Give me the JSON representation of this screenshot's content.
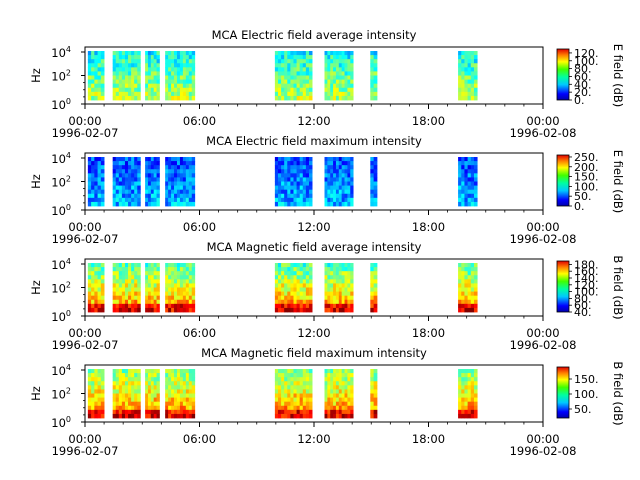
{
  "chart_data": [
    {
      "type": "heatmap",
      "title": "MCA  Electric field average intensity",
      "ylabel": "Hz",
      "yticks": [
        "10",
        "10",
        "10"
      ],
      "ytick_exps": [
        "0",
        "2",
        "4"
      ],
      "xtick_times": [
        "00:00",
        "06:00",
        "12:00",
        "18:00",
        "00:00"
      ],
      "xtick_dates": [
        "1996-02-07",
        "",
        "",
        "",
        "1996-02-08"
      ],
      "colorbar": {
        "label": "E field (dB)",
        "min": 0,
        "max": 130,
        "ticks": [
          0,
          20,
          40,
          60,
          80,
          100,
          120
        ],
        "tick_labels": [
          "0.",
          "20.",
          "40.",
          "60.",
          "80.",
          "100.",
          "120."
        ]
      },
      "intervals_hours": [
        [
          0.15,
          1.0
        ],
        [
          1.45,
          2.9
        ],
        [
          3.15,
          3.9
        ],
        [
          4.2,
          5.75
        ],
        [
          9.95,
          11.9
        ],
        [
          12.55,
          14.05
        ],
        [
          14.95,
          15.3
        ],
        [
          19.55,
          20.55
        ]
      ],
      "level_top": 0.38,
      "level_bottom": 0.55
    },
    {
      "type": "heatmap",
      "title": "MCA  Electric field maximum intensity",
      "ylabel": "Hz",
      "yticks": [
        "10",
        "10",
        "10"
      ],
      "ytick_exps": [
        "0",
        "2",
        "4"
      ],
      "xtick_times": [
        "00:00",
        "06:00",
        "12:00",
        "18:00",
        "00:00"
      ],
      "xtick_dates": [
        "1996-02-07",
        "",
        "",
        "",
        "1996-02-08"
      ],
      "colorbar": {
        "label": "E field (dB)",
        "min": 0,
        "max": 260,
        "ticks": [
          0,
          50,
          100,
          150,
          200,
          250
        ],
        "tick_labels": [
          "0.",
          "50.",
          "100.",
          "150.",
          "200.",
          "250."
        ]
      },
      "intervals_hours": [
        [
          0.15,
          1.0
        ],
        [
          1.45,
          2.9
        ],
        [
          3.15,
          3.9
        ],
        [
          4.2,
          5.75
        ],
        [
          9.95,
          11.9
        ],
        [
          12.55,
          14.05
        ],
        [
          14.95,
          15.3
        ],
        [
          19.55,
          20.55
        ]
      ],
      "level_top": 0.2,
      "level_bottom": 0.3
    },
    {
      "type": "heatmap",
      "title": "MCA  Magnetic field average intensity",
      "ylabel": "Hz",
      "yticks": [
        "10",
        "10",
        "10"
      ],
      "ytick_exps": [
        "0",
        "2",
        "4"
      ],
      "xtick_times": [
        "00:00",
        "06:00",
        "12:00",
        "18:00",
        "00:00"
      ],
      "xtick_dates": [
        "1996-02-07",
        "",
        "",
        "",
        "1996-02-08"
      ],
      "colorbar": {
        "label": "B field (dB)",
        "min": 40,
        "max": 190,
        "ticks": [
          40,
          60,
          80,
          100,
          120,
          140,
          160,
          180
        ],
        "tick_labels": [
          "40.",
          "60.",
          "80.",
          "100.",
          "120.",
          "140.",
          "160.",
          "180."
        ]
      },
      "intervals_hours": [
        [
          0.15,
          1.0
        ],
        [
          1.45,
          2.9
        ],
        [
          3.15,
          3.9
        ],
        [
          4.2,
          5.75
        ],
        [
          9.95,
          11.9
        ],
        [
          12.55,
          14.05
        ],
        [
          14.95,
          15.3
        ],
        [
          19.55,
          20.55
        ]
      ],
      "level_top": 0.45,
      "level_bottom": 0.75
    },
    {
      "type": "heatmap",
      "title": "MCA  Magnetic field maximum intensity",
      "ylabel": "Hz",
      "yticks": [
        "10",
        "10",
        "10"
      ],
      "ytick_exps": [
        "0",
        "2",
        "4"
      ],
      "xtick_times": [
        "00:00",
        "06:00",
        "12:00",
        "18:00",
        "00:00"
      ],
      "xtick_dates": [
        "1996-02-07",
        "",
        "",
        "",
        "1996-02-08"
      ],
      "colorbar": {
        "label": "B field (dB)",
        "min": 20,
        "max": 190,
        "ticks": [
          50,
          100,
          150
        ],
        "tick_labels": [
          "50.",
          "100.",
          "150."
        ]
      },
      "intervals_hours": [
        [
          0.15,
          1.0
        ],
        [
          1.45,
          2.9
        ],
        [
          3.15,
          3.9
        ],
        [
          4.2,
          5.75
        ],
        [
          9.95,
          11.9
        ],
        [
          12.55,
          14.05
        ],
        [
          14.95,
          15.3
        ],
        [
          19.55,
          20.55
        ]
      ],
      "level_top": 0.5,
      "level_bottom": 0.75
    }
  ]
}
